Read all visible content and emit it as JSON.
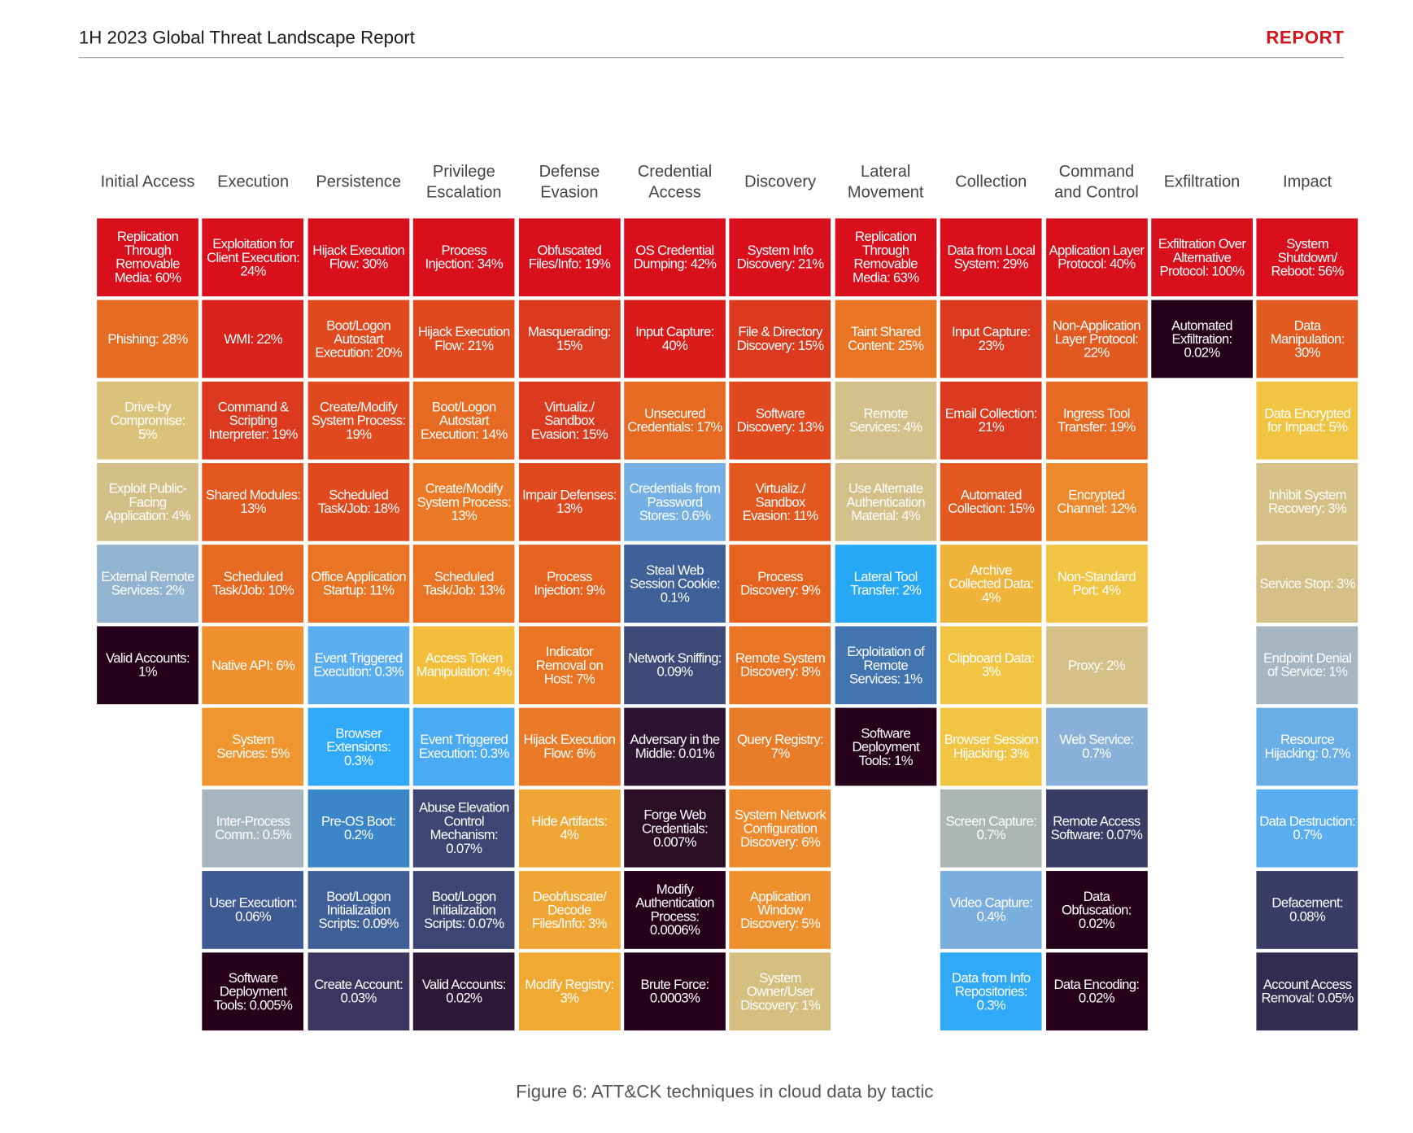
{
  "header": {
    "title": "1H 2023 Global Threat Landscape Report",
    "tag": "REPORT"
  },
  "caption": "Figure 6: ATT&CK techniques in cloud data by tactic",
  "columns": [
    {
      "tactic": "Initial Access",
      "cells": [
        {
          "label": "Replication Through Removable Media: 60%",
          "color": "#d90f1c"
        },
        {
          "label": "Phishing: 28%",
          "color": "#e56a22"
        },
        {
          "label": "Drive-by Compromise: 5%",
          "color": "#dbc27a"
        },
        {
          "label": "Exploit Public-Facing Application: 4%",
          "color": "#d3bf88"
        },
        {
          "label": "External Remote Services: 2%",
          "color": "#93b4d0"
        },
        {
          "label": "Valid Accounts: 1%",
          "color": "#26001a"
        }
      ]
    },
    {
      "tactic": "Execution",
      "cells": [
        {
          "label": "Exploitation for Client Execution: 24%",
          "color": "#d90f1c"
        },
        {
          "label": "WMI: 22%",
          "color": "#d9221a"
        },
        {
          "label": "Command & Scripting Interpreter: 19%",
          "color": "#dc3a1e"
        },
        {
          "label": "Shared Modules: 13%",
          "color": "#e2581f"
        },
        {
          "label": "Scheduled Task/Job: 10%",
          "color": "#e66a22"
        },
        {
          "label": "Native API: 6%",
          "color": "#ef8f2e"
        },
        {
          "label": "System Services: 5%",
          "color": "#ef9630"
        },
        {
          "label": "Inter-Process Comm.: 0.5%",
          "color": "#a7b5bf"
        },
        {
          "label": "User Execution: 0.06%",
          "color": "#3e5a92"
        },
        {
          "label": "Software Deployment Tools: 0.005%",
          "color": "#26001a"
        }
      ]
    },
    {
      "tactic": "Persistence",
      "cells": [
        {
          "label": "Hijack Execution Flow: 30%",
          "color": "#d90f1c"
        },
        {
          "label": "Boot/Logon Autostart Execution: 20%",
          "color": "#e04a1e"
        },
        {
          "label": "Create/Modify System Process: 19%",
          "color": "#e04a1e"
        },
        {
          "label": "Scheduled Task/Job: 18%",
          "color": "#e04a1e"
        },
        {
          "label": "Office Application Startup: 11%",
          "color": "#e87424"
        },
        {
          "label": "Event Triggered Execution: 0.3%",
          "color": "#5aaef0"
        },
        {
          "label": "Browser Extensions: 0.3%",
          "color": "#30aaf8"
        },
        {
          "label": "Pre-OS Boot: 0.2%",
          "color": "#3a86c8"
        },
        {
          "label": "Boot/Logon Initialization Scripts: 0.09%",
          "color": "#3f5f98"
        },
        {
          "label": "Create Account: 0.03%",
          "color": "#3b3560"
        }
      ]
    },
    {
      "tactic": "Privilege Escalation",
      "cells": [
        {
          "label": "Process Injection: 34%",
          "color": "#d90f1c"
        },
        {
          "label": "Hijack Execution Flow: 21%",
          "color": "#e04a1e"
        },
        {
          "label": "Boot/Logon Autostart Execution: 14%",
          "color": "#e66a22"
        },
        {
          "label": "Create/Modify System Process: 13%",
          "color": "#ea7a26"
        },
        {
          "label": "Scheduled Task/Job: 13%",
          "color": "#e87424"
        },
        {
          "label": "Access Token Manipulation: 4%",
          "color": "#f2be3c"
        },
        {
          "label": "Event Triggered Execution: 0.3%",
          "color": "#4aaaf2"
        },
        {
          "label": "Abuse Elevation Control Mechanism: 0.07%",
          "color": "#3d4672"
        },
        {
          "label": "Boot/Logon Initialization Scripts: 0.07%",
          "color": "#3d4672"
        },
        {
          "label": "Valid Accounts: 0.02%",
          "color": "#2e1838"
        }
      ]
    },
    {
      "tactic": "Defense Evasion",
      "cells": [
        {
          "label": "Obfuscated Files/Info: 19%",
          "color": "#d90f1c"
        },
        {
          "label": "Masquerading: 15%",
          "color": "#dc3a1e"
        },
        {
          "label": "Virtualiz./ Sandbox Evasion: 15%",
          "color": "#dc3a1e"
        },
        {
          "label": "Impair Defenses: 13%",
          "color": "#e0481e"
        },
        {
          "label": "Process Injection: 9%",
          "color": "#e5621f"
        },
        {
          "label": "Indicator Removal on Host: 7%",
          "color": "#e87424"
        },
        {
          "label": "Hijack Execution Flow: 6%",
          "color": "#ea7a26"
        },
        {
          "label": "Hide Artifacts: 4%",
          "color": "#efa634"
        },
        {
          "label": "Deobfuscate/ Decode Files/Info: 3%",
          "color": "#efa634"
        },
        {
          "label": "Modify Registry: 3%",
          "color": "#f0aa34"
        }
      ]
    },
    {
      "tactic": "Credential Access",
      "cells": [
        {
          "label": "OS Credential Dumping: 42%",
          "color": "#d90f1c"
        },
        {
          "label": "Input Capture: 40%",
          "color": "#d91c1a"
        },
        {
          "label": "Unsecured Credentials: 17%",
          "color": "#e66a22"
        },
        {
          "label": "Credentials from Password Stores: 0.6%",
          "color": "#74b0e4"
        },
        {
          "label": "Steal Web Session Cookie: 0.1%",
          "color": "#3f6098"
        },
        {
          "label": "Network Sniffing: 0.09%",
          "color": "#3d4a78"
        },
        {
          "label": "Adversary in the Middle: 0.01%",
          "color": "#2c1430"
        },
        {
          "label": "Forge Web Credentials: 0.007%",
          "color": "#2a0e24"
        },
        {
          "label": "Modify Authentication Process: 0.0006%",
          "color": "#26001a"
        },
        {
          "label": "Brute Force: 0.0003%",
          "color": "#26001a"
        }
      ]
    },
    {
      "tactic": "Discovery",
      "cells": [
        {
          "label": "System Info Discovery: 21%",
          "color": "#d90f1c"
        },
        {
          "label": "File & Directory Discovery: 15%",
          "color": "#dc3a1e"
        },
        {
          "label": "Software Discovery: 13%",
          "color": "#e0481e"
        },
        {
          "label": "Virtualiz./ Sandbox Evasion: 11%",
          "color": "#e2581f"
        },
        {
          "label": "Process Discovery: 9%",
          "color": "#e5621f"
        },
        {
          "label": "Remote System Discovery: 8%",
          "color": "#e87424"
        },
        {
          "label": "Query Registry: 7%",
          "color": "#e97c28"
        },
        {
          "label": "System Network Configuration Discovery: 6%",
          "color": "#ee8a2e"
        },
        {
          "label": "Application Window Discovery: 5%",
          "color": "#ef902f"
        },
        {
          "label": "System Owner/User Discovery: 1%",
          "color": "#d5bf80"
        }
      ]
    },
    {
      "tactic": "Lateral Movement",
      "cells": [
        {
          "label": "Replication Through Removable Media: 63%",
          "color": "#d90f1c"
        },
        {
          "label": "Taint Shared Content: 25%",
          "color": "#e87424"
        },
        {
          "label": "Remote Services: 4%",
          "color": "#d3c08a"
        },
        {
          "label": "Use Alternate Authentication Material: 4%",
          "color": "#d3c08a"
        },
        {
          "label": "Lateral Tool Transfer: 2%",
          "color": "#26a8f5"
        },
        {
          "label": "Exploitation of Remote Services: 1%",
          "color": "#4274b0"
        },
        {
          "label": "Software Deployment Tools: 1%",
          "color": "#26001a"
        }
      ]
    },
    {
      "tactic": "Collection",
      "cells": [
        {
          "label": "Data from Local System: 29%",
          "color": "#d90f1c"
        },
        {
          "label": "Input Capture: 23%",
          "color": "#dc3a1e"
        },
        {
          "label": "Email Collection: 21%",
          "color": "#dc3a1e"
        },
        {
          "label": "Automated Collection: 15%",
          "color": "#e2581f"
        },
        {
          "label": "Archive Collected Data: 4%",
          "color": "#f0b43a"
        },
        {
          "label": "Clipboard Data: 3%",
          "color": "#f2c444"
        },
        {
          "label": "Browser Session Hijacking: 3%",
          "color": "#f2c444"
        },
        {
          "label": "Screen Capture: 0.7%",
          "color": "#adb5b5"
        },
        {
          "label": "Video Capture: 0.4%",
          "color": "#7aaedc"
        },
        {
          "label": "Data from Info Repositories: 0.3%",
          "color": "#30aaf8"
        }
      ]
    },
    {
      "tactic": "Command and Control",
      "cells": [
        {
          "label": "Application Layer Protocol: 40%",
          "color": "#d90f1c"
        },
        {
          "label": "Non-Application Layer Protocol: 22%",
          "color": "#e25a20"
        },
        {
          "label": "Ingress Tool Transfer: 19%",
          "color": "#e66a22"
        },
        {
          "label": "Encrypted Channel: 12%",
          "color": "#ee8a2e"
        },
        {
          "label": "Non-Standard Port: 4%",
          "color": "#f2c444"
        },
        {
          "label": "Proxy: 2%",
          "color": "#d5c088"
        },
        {
          "label": "Web Service: 0.7%",
          "color": "#88b0d8"
        },
        {
          "label": "Remote Access Software: 0.07%",
          "color": "#3b3c66"
        },
        {
          "label": "Data Obfuscation: 0.02%",
          "color": "#26001a"
        },
        {
          "label": "Data Encoding: 0.02%",
          "color": "#26001a"
        }
      ]
    },
    {
      "tactic": "Exfiltration",
      "cells": [
        {
          "label": "Exfiltration Over Alternative Protocol: 100%",
          "color": "#d90f1c"
        },
        {
          "label": "Automated Exfiltration: 0.02%",
          "color": "#26001a"
        }
      ]
    },
    {
      "tactic": "Impact",
      "cells": [
        {
          "label": "System Shutdown/ Reboot: 56%",
          "color": "#d90f1c"
        },
        {
          "label": "Data Manipulation: 30%",
          "color": "#e25a20"
        },
        {
          "label": "Data Encrypted for Impact: 5%",
          "color": "#f2c444"
        },
        {
          "label": "Inhibit System Recovery: 3%",
          "color": "#d5c088"
        },
        {
          "label": "Service Stop: 3%",
          "color": "#d5c088"
        },
        {
          "label": "Endpoint Denial of Service: 1%",
          "color": "#a5b5c2"
        },
        {
          "label": "Resource Hijacking: 0.7%",
          "color": "#6aaee8"
        },
        {
          "label": "Data Destruction: 0.7%",
          "color": "#5aaef0"
        },
        {
          "label": "Defacement: 0.08%",
          "color": "#3b3c66"
        },
        {
          "label": "Account Access Removal: 0.05%",
          "color": "#332c50"
        }
      ]
    }
  ]
}
